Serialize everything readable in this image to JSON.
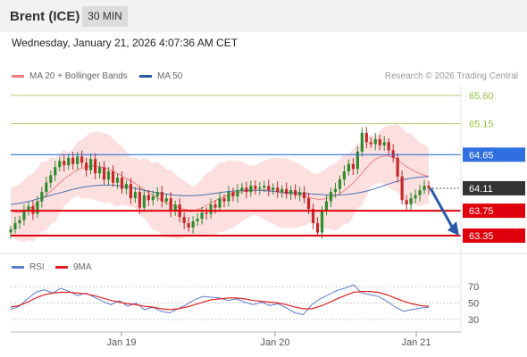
{
  "header": {
    "instrument": "Brent (ICE)",
    "timeframe": "30 MIN"
  },
  "timestamp": "Wednesday, January 21, 2026 4:07:36 AM CET",
  "legend": {
    "ma_bollinger": "MA 20 + Bollinger Bands",
    "ma50": "MA 50",
    "rsi": "RSI",
    "rsi_ma": "9MA"
  },
  "credit": "Research © 2026 Trading Central",
  "colors": {
    "resistance": "#8dc43f",
    "pivot": "#2f6fe0",
    "support": "#e0000b",
    "last": "#333333",
    "bollinger": "#fbd3d3",
    "ma20": "#f08080",
    "ma50": "#4a6fb4",
    "rsi": "#5a7fd6",
    "rsi_ma": "#e02020",
    "arrow": "#2a5aa8"
  },
  "chart_data": [
    {
      "type": "candlestick",
      "title": "Brent (ICE) 30 MIN",
      "ylim": [
        63.1,
        65.9
      ],
      "x_ticks": [
        "Jan 19",
        "Jan 20",
        "Jan 21"
      ],
      "levels": [
        {
          "value": 65.6,
          "label": "65.60",
          "kind": "resistance"
        },
        {
          "value": 65.15,
          "label": "65.15",
          "kind": "resistance"
        },
        {
          "value": 64.65,
          "label": "64.65",
          "kind": "pivot"
        },
        {
          "value": 64.11,
          "label": "64.11",
          "kind": "last"
        },
        {
          "value": 63.75,
          "label": "63.75",
          "kind": "support"
        },
        {
          "value": 63.35,
          "label": "63.35",
          "kind": "support"
        }
      ],
      "close_path": [
        63.45,
        63.55,
        63.6,
        63.75,
        63.82,
        63.7,
        63.9,
        64.05,
        64.2,
        64.32,
        64.45,
        64.55,
        64.48,
        64.6,
        64.5,
        64.62,
        64.52,
        64.4,
        64.58,
        64.35,
        64.45,
        64.25,
        64.38,
        64.2,
        64.28,
        64.1,
        64.18,
        63.95,
        64.05,
        63.8,
        64.0,
        63.92,
        63.98,
        64.05,
        63.9,
        63.95,
        63.75,
        63.85,
        63.65,
        63.55,
        63.48,
        63.58,
        63.62,
        63.72,
        63.7,
        63.85,
        63.8,
        63.95,
        63.9,
        64.05,
        63.98,
        64.08,
        64.12,
        64.05,
        64.15,
        64.1,
        64.12,
        64.15,
        64.08,
        64.12,
        64.05,
        64.1,
        64.02,
        64.08,
        64.0,
        64.05,
        63.95,
        63.78,
        63.55,
        63.4,
        63.75,
        63.9,
        64.05,
        64.1,
        64.25,
        64.38,
        64.5,
        64.42,
        64.7,
        65.0,
        64.85,
        64.82,
        64.9,
        64.8,
        64.85,
        64.72,
        64.6,
        64.3,
        63.92,
        63.85,
        63.95,
        64.0,
        64.08,
        64.15,
        64.11
      ],
      "ma20_path": [
        63.75,
        63.72,
        63.74,
        63.8,
        63.88,
        63.98,
        64.08,
        64.18,
        64.28,
        64.35,
        64.42,
        64.45,
        64.47,
        64.46,
        64.43,
        64.38,
        64.32,
        64.26,
        64.2,
        64.12,
        64.05,
        63.98,
        63.92,
        63.86,
        63.82,
        63.78,
        63.76,
        63.76,
        63.8,
        63.86,
        63.92,
        63.97,
        64.01,
        64.04,
        64.06,
        64.07,
        64.08,
        64.08,
        64.07,
        64.05,
        64.03,
        64.02,
        64.0,
        63.98,
        63.95,
        63.93,
        63.94,
        63.97,
        64.02,
        64.1,
        64.2,
        64.32,
        64.45,
        64.56,
        64.62,
        64.63,
        64.6,
        64.52,
        64.44,
        64.38,
        64.33,
        64.3
      ],
      "ma50_path": [
        63.85,
        63.87,
        63.9,
        63.94,
        63.98,
        64.02,
        64.06,
        64.1,
        64.13,
        64.15,
        64.16,
        64.16,
        64.15,
        64.13,
        64.1,
        64.07,
        64.04,
        64.02,
        64.0,
        63.99,
        63.99,
        64.0,
        64.02,
        64.04,
        64.06,
        64.07,
        64.08,
        64.08,
        64.07,
        64.06,
        64.05,
        64.04,
        64.03,
        64.02,
        64.01,
        64.0,
        64.0,
        64.01,
        64.03,
        64.06,
        64.1,
        64.15,
        64.2,
        64.24,
        64.27,
        64.29,
        64.3
      ]
    },
    {
      "type": "line",
      "title": "RSI",
      "ylim": [
        20,
        80
      ],
      "y_ticks": [
        70,
        50,
        30
      ],
      "series": [
        {
          "name": "RSI",
          "values": [
            42,
            46,
            55,
            63,
            66,
            62,
            68,
            64,
            59,
            62,
            57,
            52,
            48,
            53,
            46,
            50,
            42,
            45,
            40,
            38,
            43,
            48,
            54,
            58,
            57,
            56,
            53,
            55,
            51,
            48,
            51,
            47,
            49,
            44,
            38,
            36,
            48,
            55,
            60,
            65,
            68,
            72,
            62,
            60,
            58,
            52,
            45,
            40,
            42,
            44,
            45
          ]
        },
        {
          "name": "9MA",
          "values": [
            45,
            47,
            51,
            56,
            60,
            62,
            63,
            63,
            62,
            61,
            59,
            56,
            53,
            51,
            49,
            48,
            46,
            45,
            43,
            42,
            43,
            45,
            48,
            51,
            54,
            55,
            56,
            56,
            55,
            53,
            52,
            51,
            50,
            48,
            45,
            43,
            43,
            46,
            50,
            55,
            59,
            63,
            64,
            64,
            63,
            60,
            56,
            52,
            49,
            47,
            46
          ]
        }
      ]
    }
  ]
}
